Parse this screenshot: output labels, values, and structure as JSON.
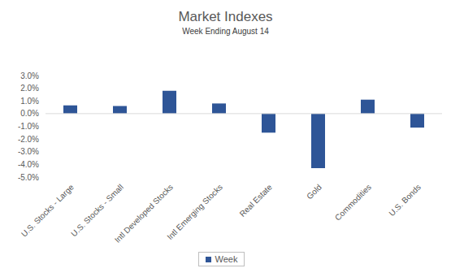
{
  "chart_data": {
    "type": "bar",
    "title": "Market Indexes",
    "subtitle": "Week Ending August 14",
    "categories": [
      "U.S. Stocks - Large",
      "U.S. Stocks - Small",
      "Intl Developed Stocks",
      "Intl Emerging Stocks",
      "Real Estate",
      "Gold",
      "Commodities",
      "U.S. Bonds"
    ],
    "series": [
      {
        "name": "Week",
        "color": "#2e5597",
        "values": [
          0.65,
          0.6,
          1.8,
          0.8,
          -1.5,
          -4.3,
          1.1,
          -1.1
        ]
      }
    ],
    "ylim": [
      -5,
      3
    ],
    "yticks": [
      {
        "value": -5,
        "label": "-5.0%"
      },
      {
        "value": -4,
        "label": "-4.0%"
      },
      {
        "value": -3,
        "label": "-3.0%"
      },
      {
        "value": -2,
        "label": "-2.0%"
      },
      {
        "value": -1,
        "label": "-1.0%"
      },
      {
        "value": 0,
        "label": "0.0%"
      },
      {
        "value": 1,
        "label": "1.0%"
      },
      {
        "value": 2,
        "label": "2.0%"
      },
      {
        "value": 3,
        "label": "3.0%"
      }
    ],
    "grid": false,
    "legend": "bottom"
  }
}
